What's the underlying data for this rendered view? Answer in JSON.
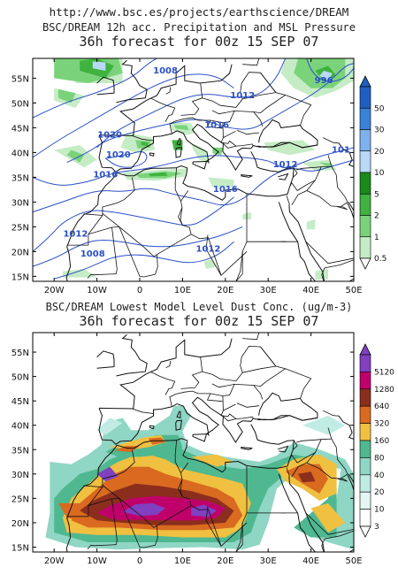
{
  "url": "http://www.bsc.es/projects/earthscience/DREAM",
  "panels": [
    {
      "title": "BSC/DREAM 12h acc. Precipitation and MSL Pressure",
      "subtitle": "36h forecast for 00z 15 SEP 07",
      "legend": {
        "labels": [
          "50",
          "30",
          "20",
          "10",
          "5",
          "2",
          "1",
          "0.5"
        ],
        "colors": [
          "#1f5fbf",
          "#3a82d8",
          "#7db2ee",
          "#b9d9f7",
          "#1a8a1a",
          "#3fb23f",
          "#7ad37a",
          "#c5ecc5"
        ]
      },
      "isobars": [
        {
          "label": "1008",
          "lon": 6,
          "lat": 56
        },
        {
          "label": "996",
          "lon": 43,
          "lat": 54
        },
        {
          "label": "1012",
          "lon": 24,
          "lat": 51
        },
        {
          "label": "1016",
          "lon": 18,
          "lat": 45
        },
        {
          "label": "1020",
          "lon": -7,
          "lat": 43
        },
        {
          "label": "1020",
          "lon": -5,
          "lat": 39
        },
        {
          "label": "1016",
          "lon": -8,
          "lat": 35
        },
        {
          "label": "1012",
          "lon": 34,
          "lat": 37
        },
        {
          "label": "1016",
          "lon": 20,
          "lat": 32
        },
        {
          "label": "101",
          "lon": 47,
          "lat": 40
        },
        {
          "label": "1012",
          "lon": -15,
          "lat": 23
        },
        {
          "label": "1008",
          "lon": -11,
          "lat": 19
        },
        {
          "label": "1012",
          "lon": 16,
          "lat": 20
        }
      ]
    },
    {
      "title": "BSC/DREAM Lowest Model Level Dust Conc. (ug/m-3)",
      "subtitle": "36h forecast for 00z 15 SEP 07",
      "legend": {
        "labels": [
          "5120",
          "1280",
          "640",
          "320",
          "160",
          "80",
          "40",
          "20",
          "10",
          "3"
        ],
        "colors": [
          "#8040c0",
          "#c0006a",
          "#8c2e1e",
          "#d96a20",
          "#f0c040",
          "#4fb890",
          "#8fd6c4",
          "#c0ece4",
          "#e4f7f4",
          "#ffffff"
        ]
      }
    }
  ],
  "axes": {
    "lat_labels": [
      "55N",
      "50N",
      "45N",
      "40N",
      "35N",
      "30N",
      "25N",
      "20N",
      "15N"
    ],
    "lon_labels": [
      "20W",
      "10W",
      "0",
      "10E",
      "20E",
      "30E",
      "40E",
      "50E"
    ]
  },
  "colors": {
    "coast": "#111111",
    "isobar": "#2a50c8"
  }
}
